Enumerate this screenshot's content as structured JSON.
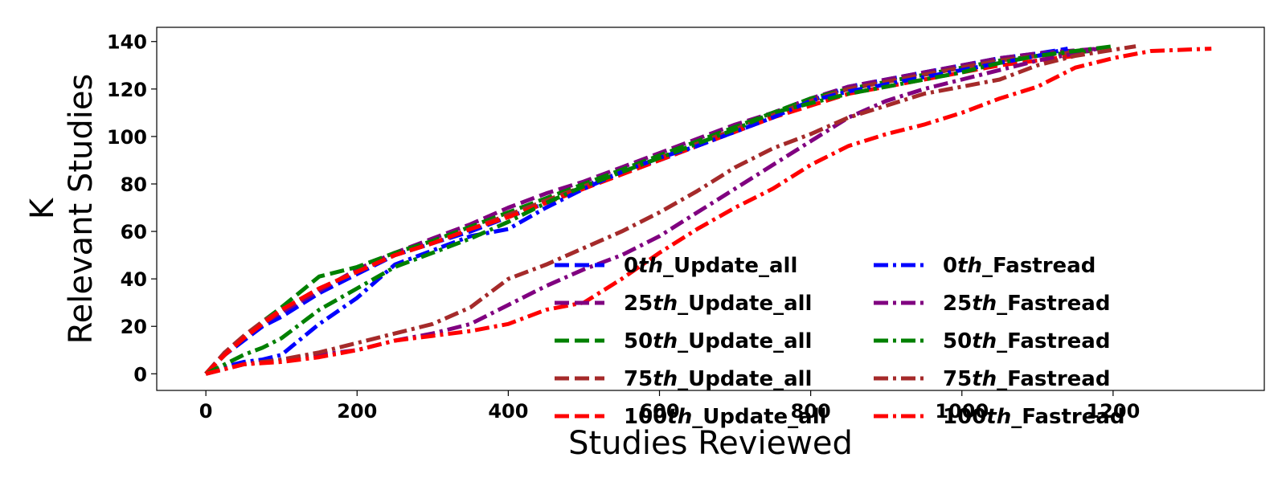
{
  "chart_data": {
    "type": "line",
    "xlabel": "Studies Reviewed",
    "ylabel_lines": [
      "K",
      "Relevant Studies"
    ],
    "xlim": [
      -65,
      1400
    ],
    "ylim": [
      -7,
      146
    ],
    "xticks": [
      0,
      200,
      400,
      600,
      800,
      1000,
      1200
    ],
    "yticks": [
      0,
      20,
      40,
      60,
      80,
      100,
      120,
      140
    ],
    "grid": false,
    "legend_position": "lower-right",
    "legend_columns": 2,
    "series": [
      {
        "name_prefix": "0",
        "name_suffix": "th",
        "name_rest": "_Update_all",
        "color": "#0000ff",
        "style": "dashed",
        "x": [
          0,
          25,
          50,
          75,
          100,
          150,
          200,
          250,
          300,
          350,
          400,
          450,
          500,
          550,
          600,
          650,
          700,
          750,
          800,
          850,
          900,
          950,
          1000,
          1050,
          1100,
          1140
        ],
        "y": [
          0,
          8,
          14,
          20,
          24,
          34,
          42,
          50,
          55,
          60,
          66,
          72,
          79,
          85,
          90,
          96,
          102,
          108,
          115,
          121,
          124,
          127,
          130,
          133,
          135,
          137
        ]
      },
      {
        "name_prefix": "25",
        "name_suffix": "th",
        "name_rest": "_Update_all",
        "color": "#800080",
        "style": "dashed",
        "x": [
          0,
          25,
          50,
          75,
          100,
          150,
          200,
          250,
          300,
          350,
          400,
          450,
          500,
          550,
          600,
          650,
          700,
          750,
          800,
          850,
          900,
          950,
          1000,
          1050,
          1100,
          1180
        ],
        "y": [
          0,
          9,
          15,
          21,
          26,
          35,
          44,
          51,
          57,
          63,
          70,
          76,
          81,
          87,
          93,
          99,
          105,
          110,
          116,
          121,
          124,
          127,
          130,
          133,
          135,
          137
        ]
      },
      {
        "name_prefix": "50",
        "name_suffix": "th",
        "name_rest": "_Update_all",
        "color": "#008000",
        "style": "dashed",
        "x": [
          0,
          25,
          50,
          75,
          100,
          150,
          200,
          250,
          300,
          350,
          400,
          450,
          500,
          550,
          600,
          650,
          700,
          750,
          800,
          850,
          900,
          950,
          1000,
          1050,
          1100,
          1170
        ],
        "y": [
          0,
          8,
          15,
          22,
          28,
          41,
          45,
          51,
          56,
          62,
          68,
          74,
          80,
          86,
          92,
          98,
          104,
          110,
          116,
          120,
          123,
          126,
          129,
          132,
          134,
          136
        ]
      },
      {
        "name_prefix": "75",
        "name_suffix": "th",
        "name_rest": "_Update_all",
        "color": "#a52a2a",
        "style": "dashed",
        "x": [
          0,
          25,
          50,
          75,
          100,
          150,
          200,
          250,
          300,
          350,
          400,
          450,
          500,
          550,
          600,
          650,
          700,
          750,
          800,
          850,
          900,
          950,
          1000,
          1050,
          1100,
          1160
        ],
        "y": [
          0,
          9,
          16,
          22,
          27,
          36,
          43,
          50,
          55,
          61,
          67,
          73,
          79,
          85,
          91,
          97,
          103,
          109,
          115,
          120,
          123,
          126,
          129,
          132,
          134,
          136
        ]
      },
      {
        "name_prefix": "100",
        "name_suffix": "th",
        "name_rest": "_Update_all",
        "color": "#ff0000",
        "style": "dashed",
        "x": [
          0,
          25,
          50,
          75,
          100,
          150,
          200,
          250,
          300,
          350,
          400,
          450,
          500,
          550,
          600,
          650,
          700,
          750,
          800,
          850,
          900,
          950,
          1000,
          1050,
          1100,
          1150
        ],
        "y": [
          0,
          8,
          15,
          21,
          27,
          36,
          43,
          50,
          55,
          61,
          66,
          72,
          78,
          84,
          90,
          96,
          102,
          108,
          113,
          118,
          121,
          124,
          127,
          130,
          132,
          134
        ]
      },
      {
        "name_prefix": "0",
        "name_suffix": "th",
        "name_rest": "_Fastread",
        "color": "#0000ff",
        "style": "dashdot",
        "x": [
          0,
          25,
          50,
          75,
          100,
          150,
          200,
          250,
          300,
          350,
          400,
          450,
          500,
          550,
          600,
          650,
          700,
          750,
          800,
          850,
          900,
          950,
          1000,
          1050,
          1100,
          1140
        ],
        "y": [
          0,
          3,
          5,
          6,
          8,
          21,
          32,
          46,
          52,
          58,
          61,
          70,
          78,
          85,
          91,
          96,
          102,
          108,
          115,
          119,
          122,
          125,
          128,
          131,
          134,
          137
        ]
      },
      {
        "name_prefix": "25",
        "name_suffix": "th",
        "name_rest": "_Fastread",
        "color": "#800080",
        "style": "dashdot",
        "x": [
          0,
          50,
          100,
          150,
          200,
          250,
          300,
          350,
          400,
          450,
          500,
          550,
          600,
          650,
          700,
          750,
          800,
          850,
          900,
          950,
          1000,
          1050,
          1100,
          1150,
          1180
        ],
        "y": [
          0,
          4,
          6,
          8,
          10,
          14,
          17,
          21,
          29,
          37,
          44,
          50,
          58,
          68,
          78,
          88,
          98,
          108,
          115,
          120,
          124,
          128,
          132,
          135,
          137
        ]
      },
      {
        "name_prefix": "50",
        "name_suffix": "th",
        "name_rest": "_Fastread",
        "color": "#008000",
        "style": "dashdot",
        "x": [
          0,
          25,
          50,
          75,
          100,
          150,
          200,
          250,
          300,
          350,
          400,
          450,
          500,
          550,
          600,
          650,
          700,
          750,
          800,
          850,
          900,
          950,
          1000,
          1050,
          1100,
          1150,
          1200
        ],
        "y": [
          0,
          4,
          8,
          11,
          15,
          27,
          36,
          45,
          51,
          57,
          64,
          72,
          79,
          85,
          91,
          97,
          103,
          110,
          114,
          118,
          121,
          124,
          127,
          131,
          134,
          136,
          138
        ]
      },
      {
        "name_prefix": "75",
        "name_suffix": "th",
        "name_rest": "_Fastread",
        "color": "#a52a2a",
        "style": "dashdot",
        "x": [
          0,
          50,
          100,
          150,
          200,
          250,
          300,
          350,
          400,
          450,
          500,
          550,
          600,
          650,
          700,
          750,
          800,
          850,
          900,
          950,
          1000,
          1050,
          1100,
          1150,
          1230
        ],
        "y": [
          0,
          4,
          6,
          9,
          13,
          17,
          21,
          28,
          40,
          46,
          53,
          60,
          68,
          77,
          87,
          95,
          101,
          108,
          113,
          118,
          121,
          124,
          130,
          134,
          138
        ]
      },
      {
        "name_prefix": "100",
        "name_suffix": "th",
        "name_rest": "_Fastread",
        "color": "#ff0000",
        "style": "dashdot",
        "x": [
          0,
          50,
          100,
          150,
          200,
          250,
          300,
          350,
          400,
          450,
          500,
          550,
          600,
          650,
          700,
          750,
          800,
          850,
          900,
          950,
          1000,
          1050,
          1100,
          1150,
          1200,
          1250,
          1330
        ],
        "y": [
          0,
          4,
          5,
          7,
          10,
          14,
          16,
          18,
          21,
          27,
          30,
          40,
          51,
          61,
          70,
          78,
          88,
          96,
          101,
          105,
          110,
          116,
          121,
          129,
          133,
          136,
          137
        ]
      }
    ]
  }
}
